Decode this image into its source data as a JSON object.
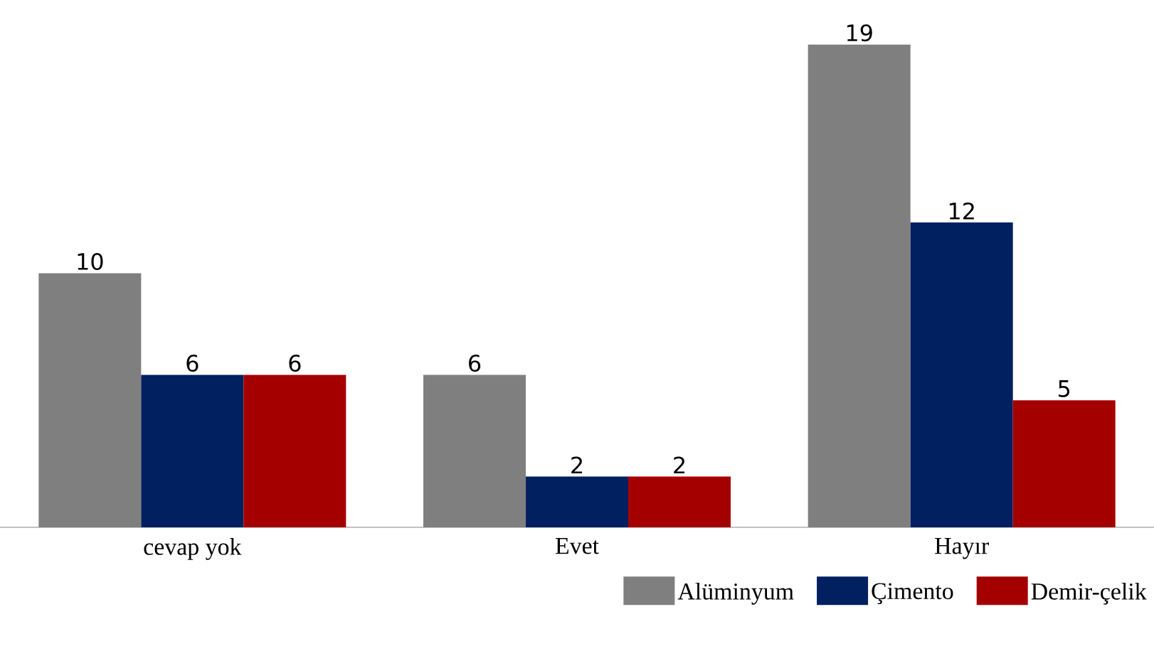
{
  "chart_data": {
    "type": "bar",
    "categories": [
      "cevap yok",
      "Evet",
      "Hayır"
    ],
    "series": [
      {
        "name": "Alüminyum",
        "color": "#7f7f7f",
        "values": [
          10,
          6,
          19
        ]
      },
      {
        "name": "Çimento",
        "color": "#002060",
        "values": [
          6,
          2,
          12
        ]
      },
      {
        "name": "Demir-çelik",
        "color": "#a50000",
        "values": [
          6,
          2,
          5
        ]
      }
    ],
    "tick_labels": "x",
    "data_labels": true,
    "legend": "bottom right"
  }
}
